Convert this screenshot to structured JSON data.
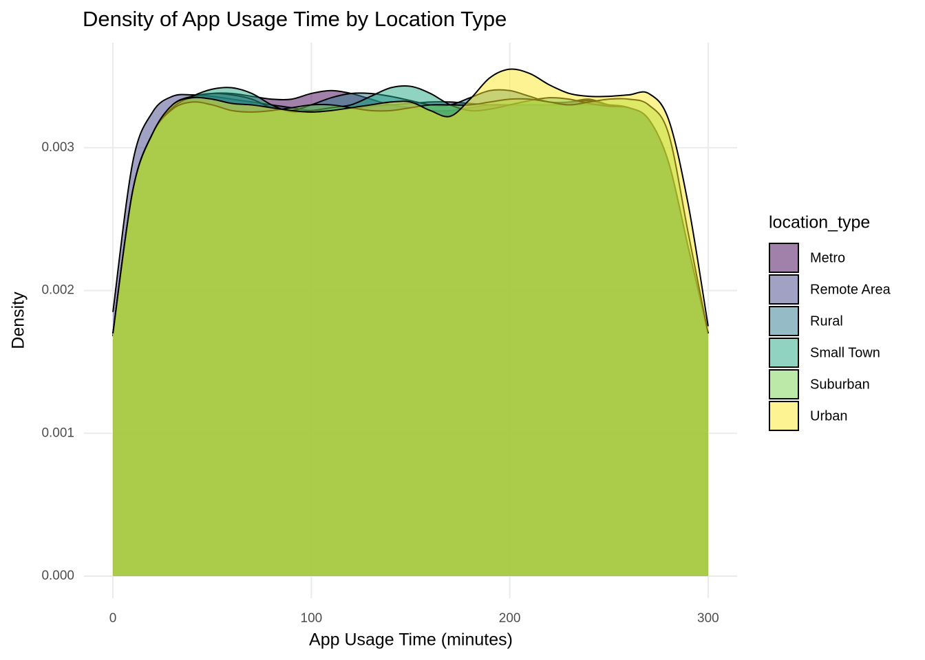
{
  "chart_data": {
    "type": "density",
    "title": "Density of App Usage Time by Location Type",
    "x_label": "App Usage Time (minutes)",
    "y_label": "Density",
    "legend_title": "location_type",
    "legend_position": "right",
    "grid": true,
    "fill_opacity": 0.5,
    "xlim": [
      -14.6,
      314.6
    ],
    "ylim": [
      -0.000154,
      0.003736
    ],
    "xticks": [
      0,
      100,
      200,
      300
    ],
    "yticks": [
      {
        "value": 0,
        "label": "0.000"
      },
      0.001,
      0.002,
      0.003
    ],
    "x": [
      0,
      10,
      20,
      30,
      40,
      50,
      60,
      70,
      80,
      90,
      100,
      110,
      120,
      130,
      140,
      150,
      160,
      170,
      180,
      190,
      200,
      210,
      220,
      230,
      240,
      250,
      260,
      270,
      280,
      290,
      300
    ],
    "series": [
      {
        "name": "Metro",
        "color": "#440154",
        "values": [
          0.00168,
          0.0027,
          0.0031,
          0.00328,
          0.00335,
          0.00338,
          0.00338,
          0.00336,
          0.00334,
          0.00334,
          0.00338,
          0.0034,
          0.00338,
          0.00334,
          0.0033,
          0.00328,
          0.00326,
          0.00326,
          0.00328,
          0.0033,
          0.0033,
          0.0033,
          0.0033,
          0.00332,
          0.00334,
          0.0033,
          0.00328,
          0.0032,
          0.0029,
          0.0023,
          0.0017
        ]
      },
      {
        "name": "Remote Area",
        "color": "#414487",
        "values": [
          0.00185,
          0.0029,
          0.00325,
          0.00336,
          0.00337,
          0.00336,
          0.00334,
          0.00332,
          0.0033,
          0.00328,
          0.00326,
          0.00326,
          0.00327,
          0.00329,
          0.0033,
          0.00331,
          0.00332,
          0.00332,
          0.00331,
          0.0033,
          0.0033,
          0.0033,
          0.0033,
          0.0033,
          0.0033,
          0.0033,
          0.00328,
          0.0032,
          0.0029,
          0.0023,
          0.0017
        ]
      },
      {
        "name": "Rural",
        "color": "#2A788E",
        "values": [
          0.0017,
          0.0027,
          0.0031,
          0.0033,
          0.00336,
          0.00338,
          0.00337,
          0.00334,
          0.00328,
          0.00326,
          0.0033,
          0.00335,
          0.00338,
          0.00338,
          0.00336,
          0.00333,
          0.0033,
          0.0033,
          0.00335,
          0.0034,
          0.0034,
          0.00336,
          0.00332,
          0.00332,
          0.00333,
          0.0033,
          0.00328,
          0.0032,
          0.0029,
          0.0023,
          0.0017
        ]
      },
      {
        "name": "Small Town",
        "color": "#22A884",
        "values": [
          0.0017,
          0.0027,
          0.0031,
          0.00328,
          0.00336,
          0.00341,
          0.00342,
          0.00338,
          0.0033,
          0.00325,
          0.00326,
          0.00328,
          0.0033,
          0.00336,
          0.00342,
          0.00343,
          0.00338,
          0.0033,
          0.00326,
          0.00327,
          0.0033,
          0.00333,
          0.00335,
          0.00334,
          0.00331,
          0.00329,
          0.00328,
          0.0032,
          0.0029,
          0.0023,
          0.0017
        ]
      },
      {
        "name": "Suburban",
        "color": "#7AD151",
        "values": [
          0.0017,
          0.0027,
          0.0031,
          0.00327,
          0.00332,
          0.0033,
          0.00326,
          0.00325,
          0.00326,
          0.00328,
          0.0033,
          0.0033,
          0.00328,
          0.00326,
          0.00326,
          0.00328,
          0.0033,
          0.0033,
          0.0033,
          0.00332,
          0.00334,
          0.00334,
          0.00332,
          0.0033,
          0.00332,
          0.00334,
          0.00334,
          0.0033,
          0.0031,
          0.0024,
          0.0017
        ]
      },
      {
        "name": "Urban",
        "color": "#FDE725",
        "values": [
          0.0017,
          0.0027,
          0.0031,
          0.0033,
          0.00335,
          0.00334,
          0.00331,
          0.0033,
          0.00328,
          0.00326,
          0.00325,
          0.00326,
          0.00328,
          0.0033,
          0.00332,
          0.00332,
          0.00326,
          0.00322,
          0.00334,
          0.00349,
          0.00355,
          0.00352,
          0.00344,
          0.00338,
          0.00336,
          0.00336,
          0.00337,
          0.00338,
          0.0032,
          0.0026,
          0.00175
        ]
      }
    ]
  }
}
